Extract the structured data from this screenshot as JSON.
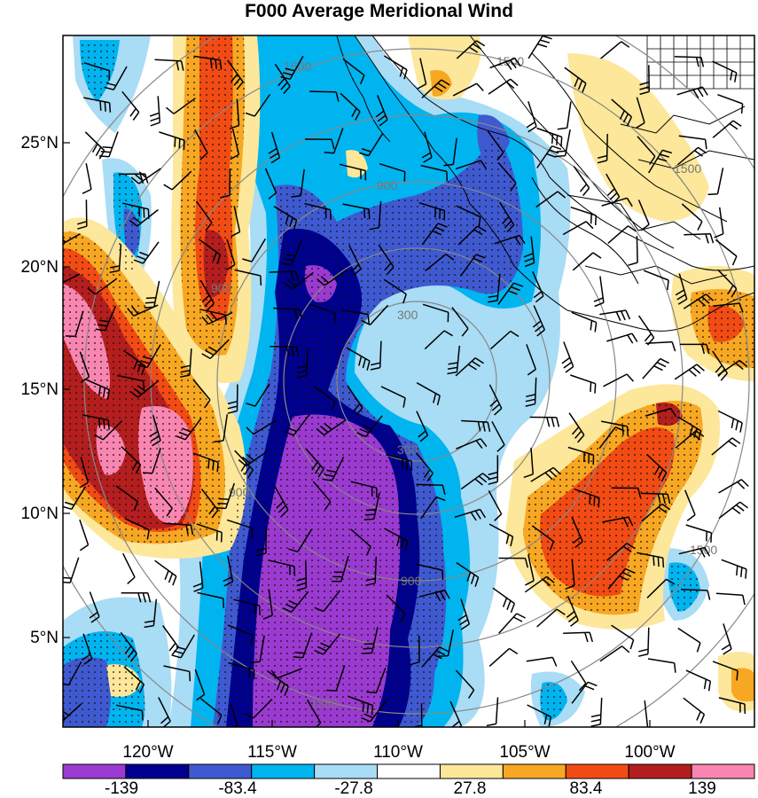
{
  "title": "F000 Average Meridional Wind",
  "y_axis_labels": [
    "25°N",
    "20°N",
    "15°N",
    "10°N",
    "5°N"
  ],
  "x_axis_labels": [
    "120°W",
    "115°W",
    "110°W",
    "105°W",
    "100°W"
  ],
  "colorbar": {
    "colors": [
      "#9b3ad0",
      "#00008f",
      "#3f5ad0",
      "#00b4f0",
      "#a9dcf5",
      "#ffffff",
      "#fde79a",
      "#f7a722",
      "#f24b14",
      "#b51e1e",
      "#f986b0"
    ],
    "labels": [
      "-139",
      "-83.4",
      "-27.8",
      "27.8",
      "83.4",
      "139"
    ]
  },
  "range_ring_labels": [
    "300",
    "300",
    "900",
    "900",
    "900",
    "900",
    "1500",
    "1500",
    "1500",
    "1500",
    "1500"
  ],
  "map": {
    "lon_range": [
      -124.5,
      -97.5
    ],
    "lat_range": [
      1,
      28.5
    ],
    "contour_field": "average meridional wind",
    "stippling": "significance dots over colored regions",
    "overlays": [
      "wind barbs",
      "range rings",
      "coastlines and political boundaries"
    ]
  }
}
